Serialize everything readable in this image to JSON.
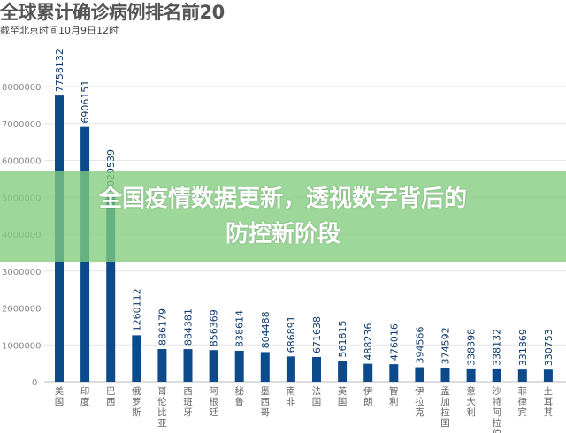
{
  "chart_data": {
    "type": "bar",
    "title": "全球累计确诊病例排名前20",
    "subtitle": "截至北京时间10月9日12时",
    "categories": [
      "美国",
      "印度",
      "巴西",
      "俄罗斯",
      "哥伦比亚",
      "西班牙",
      "阿根廷",
      "秘鲁",
      "墨西哥",
      "南非",
      "法国",
      "英国",
      "伊朗",
      "智利",
      "伊拉克",
      "孟加拉国",
      "意大利",
      "沙特阿拉伯",
      "菲律宾",
      "土耳其"
    ],
    "values": [
      7758132,
      6906151,
      5029539,
      1260112,
      886179,
      884381,
      856369,
      838614,
      804488,
      686891,
      671638,
      561815,
      488236,
      476016,
      394566,
      374592,
      338398,
      338132,
      331869,
      330753
    ],
    "ylim": [
      0,
      8000000
    ],
    "yticks": [
      0,
      1000000,
      2000000,
      3000000,
      4000000,
      5000000,
      6000000,
      7000000,
      8000000
    ],
    "grid": true,
    "bar_color": "#0d4a8c"
  },
  "banner": {
    "line1": "全国疫情数据更新，透视数字背后的",
    "line2": "防控新阶段"
  }
}
